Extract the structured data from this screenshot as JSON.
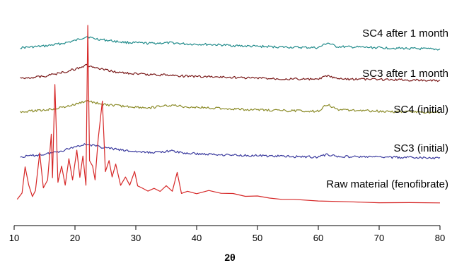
{
  "chart_data": {
    "type": "line",
    "title": "",
    "xlabel": "2θ",
    "ylabel": "",
    "xlim": [
      10,
      80
    ],
    "xticks": [
      10,
      20,
      30,
      40,
      50,
      60,
      70,
      80
    ],
    "grid": false,
    "legend": "labels placed above each trace on the right",
    "series": [
      {
        "name": "SC4 after 1 month",
        "color": "#1f8a8a",
        "x": [
          11,
          15,
          18,
          20,
          21,
          22,
          23,
          25,
          28,
          32,
          36,
          38,
          42,
          48,
          55,
          60,
          61.5,
          63,
          70,
          80
        ],
        "y": [
          0.3,
          0.6,
          1.1,
          1.6,
          2.0,
          2.4,
          2.0,
          1.7,
          1.3,
          1.1,
          1.2,
          1.0,
          0.9,
          0.6,
          0.4,
          0.3,
          1.2,
          0.5,
          0.3,
          0.0
        ]
      },
      {
        "name": "SC3 after 1 month",
        "color": "#7a1a1a",
        "x": [
          11,
          15,
          18,
          20,
          21,
          22,
          23,
          25,
          28,
          32,
          36,
          38,
          42,
          48,
          55,
          60,
          61.5,
          63,
          70,
          80
        ],
        "y": [
          0.5,
          0.9,
          1.6,
          2.2,
          2.6,
          2.9,
          2.5,
          2.0,
          1.5,
          1.2,
          1.1,
          0.9,
          0.8,
          0.6,
          0.4,
          0.3,
          1.0,
          0.4,
          0.3,
          0.1
        ]
      },
      {
        "name": "SC4 (initial)",
        "color": "#8c8c2a",
        "x": [
          11,
          15,
          18,
          20,
          21,
          22,
          23,
          25,
          28,
          32,
          36,
          38,
          42,
          48,
          55,
          60,
          61.5,
          63,
          70,
          80
        ],
        "y": [
          0.2,
          0.5,
          1.0,
          1.5,
          1.9,
          2.2,
          1.9,
          1.5,
          1.2,
          0.9,
          1.4,
          1.1,
          0.9,
          0.6,
          0.4,
          0.3,
          1.6,
          0.6,
          0.3,
          0.0
        ]
      },
      {
        "name": "SC3 (initial)",
        "color": "#3a3a9e",
        "x": [
          11,
          15,
          18,
          20,
          21,
          22,
          23,
          25,
          28,
          32,
          36,
          38,
          42,
          48,
          55,
          60,
          61.5,
          63,
          70,
          80
        ],
        "y": [
          0.3,
          0.8,
          1.5,
          2.2,
          2.5,
          2.7,
          2.4,
          2.0,
          1.5,
          1.1,
          1.4,
          1.0,
          0.8,
          0.6,
          0.4,
          0.3,
          0.8,
          0.4,
          0.3,
          0.1
        ]
      },
      {
        "name": "Raw material (fenofibrate)",
        "color": "#d62828",
        "x": [
          10.5,
          11.3,
          11.8,
          12.4,
          13.0,
          13.5,
          14.2,
          14.8,
          15.5,
          16.1,
          16.3,
          16.7,
          17.2,
          17.8,
          18.4,
          19.0,
          19.6,
          20.3,
          20.8,
          21.3,
          21.8,
          22.1,
          22.4,
          22.9,
          23.3,
          23.8,
          24.5,
          25.0,
          25.6,
          26.1,
          26.7,
          27.5,
          28.3,
          29.0,
          29.8,
          30.3,
          31.0,
          32.0,
          33.0,
          34.0,
          35.0,
          36.0,
          36.8,
          37.5,
          38.5,
          40.0,
          42.0,
          44.0,
          46.0,
          48.0,
          50.0,
          52.0,
          54.0,
          56.0,
          60.0,
          65.0,
          70.0,
          75.0,
          80.0
        ],
        "y": [
          1.0,
          2.2,
          7.0,
          3.5,
          1.5,
          2.5,
          9.5,
          3.0,
          4.5,
          13.0,
          5.0,
          22.0,
          4.0,
          7.0,
          3.5,
          8.5,
          4.5,
          10.0,
          5.0,
          9.0,
          3.5,
          33.0,
          8.0,
          7.0,
          4.5,
          12.0,
          19.0,
          6.0,
          8.0,
          5.0,
          7.5,
          3.5,
          5.0,
          3.5,
          6.0,
          3.5,
          3.0,
          2.5,
          3.0,
          2.5,
          3.5,
          2.5,
          6.0,
          2.0,
          2.5,
          2.0,
          2.5,
          2.0,
          2.0,
          1.5,
          1.5,
          1.2,
          1.0,
          0.9,
          0.7,
          0.5,
          0.4,
          0.3,
          0.2
        ]
      }
    ]
  }
}
